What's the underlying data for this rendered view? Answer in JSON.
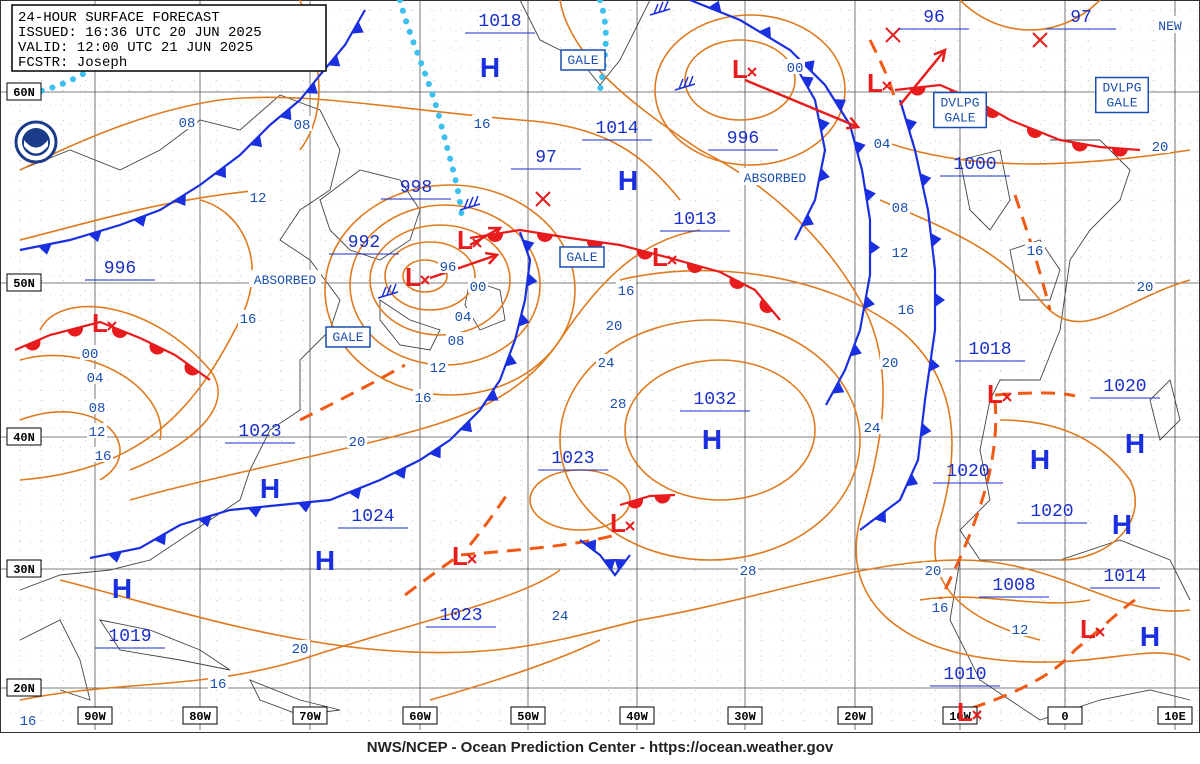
{
  "header": {
    "lines": [
      "24-HOUR SURFACE FORECAST",
      "ISSUED: 16:36 UTC 20 JUN 2025",
      "VALID:  12:00 UTC 21 JUN 2025",
      "FCSTR:  Joseph"
    ]
  },
  "footer": "NWS/NCEP - Ocean Prediction Center - https://ocean.weather.gov",
  "lat_labels": [
    "60N",
    "50N",
    "40N",
    "30N",
    "20N"
  ],
  "lon_labels": [
    "90W",
    "80W",
    "70W",
    "60W",
    "50W",
    "40W",
    "30W",
    "20W",
    "10W",
    "0",
    "10E"
  ],
  "pressure_labels": [
    "1018",
    "1014",
    "996",
    "998",
    "992",
    "1013",
    "996",
    "97",
    "96",
    "97",
    "1000",
    "1018",
    "1020",
    "1020",
    "1020",
    "1032",
    "1023",
    "1023",
    "1023",
    "1024",
    "1019",
    "1008",
    "1014",
    "1010"
  ],
  "isobar_labels": [
    "08",
    "08",
    "12",
    "16",
    "96",
    "00",
    "04",
    "08",
    "12",
    "16",
    "20",
    "16",
    "00",
    "04",
    "08",
    "12",
    "16",
    "16",
    "20",
    "24",
    "28",
    "24",
    "28",
    "24",
    "20",
    "16",
    "16",
    "00",
    "04",
    "08",
    "12",
    "16",
    "20",
    "20",
    "16",
    "12",
    "16",
    "20",
    "20"
  ],
  "annotations": [
    "GALE",
    "GALE",
    "GALE",
    "DVLPG GALE",
    "DVLPG GALE",
    "ABSORBED",
    "ABSORBED",
    "NEW"
  ],
  "centers": [
    "H",
    "H",
    "H",
    "H",
    "H",
    "H",
    "H",
    "H",
    "H",
    "H",
    "L",
    "L",
    "L",
    "L",
    "L",
    "L",
    "L",
    "L",
    "L",
    "L",
    "L"
  ]
}
